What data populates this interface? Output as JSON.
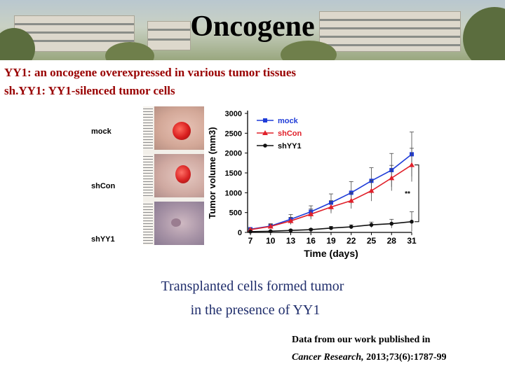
{
  "slide": {
    "title": "Oncogene",
    "line1": "YY1: an oncogene overexpressed in various tumor tissues",
    "line2": "sh.YY1: YY1-silenced tumor cells",
    "caption_line1": "Transplanted cells formed tumor",
    "caption_line2": "in the presence of YY1",
    "citation_line1": "Data from our work published in",
    "citation_journal": "Cancer Research,",
    "citation_ref": " 2013;73(6):1787-99"
  },
  "photo_labels": [
    "mock",
    "shCon",
    "shYY1"
  ],
  "colors": {
    "title_red": "#990000",
    "caption_navy": "#1f2d6b",
    "mock": "#1f3cd8",
    "shCon": "#e0202a",
    "shYY1": "#111111"
  },
  "chart_data": {
    "type": "line",
    "xlabel": "Time (days)",
    "ylabel": "Tumor volume (mm3)",
    "x": [
      7,
      10,
      13,
      16,
      19,
      22,
      25,
      28,
      31
    ],
    "ylim": [
      0,
      3000
    ],
    "yticks": [
      0,
      500,
      1000,
      1500,
      2000,
      2500,
      3000
    ],
    "legend_position": "top-left",
    "significance": "**",
    "series": [
      {
        "name": "mock",
        "marker": "square",
        "values": [
          80,
          160,
          330,
          520,
          750,
          1000,
          1300,
          1570,
          1970
        ],
        "errors": [
          40,
          60,
          120,
          150,
          220,
          280,
          330,
          420,
          560
        ]
      },
      {
        "name": "shCon",
        "marker": "triangle",
        "values": [
          70,
          150,
          290,
          460,
          640,
          800,
          1050,
          1370,
          1700
        ],
        "errors": [
          30,
          50,
          90,
          130,
          160,
          200,
          260,
          320,
          420
        ]
      },
      {
        "name": "shYY1",
        "marker": "circle",
        "values": [
          20,
          30,
          50,
          70,
          110,
          140,
          190,
          220,
          270
        ],
        "errors": [
          10,
          15,
          20,
          25,
          40,
          50,
          70,
          110,
          250
        ]
      }
    ]
  }
}
